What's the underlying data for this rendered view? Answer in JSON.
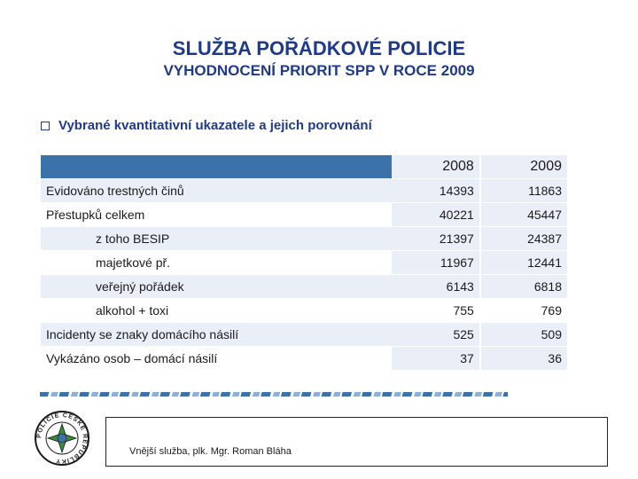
{
  "header": {
    "title": "SLUŽBA POŘÁDKOVÉ POLICIE",
    "subtitle": "VYHODNOCENÍ  PRIORIT  SPP  V  ROCE 2009"
  },
  "bullet": {
    "text": "Vybrané kvantitativní ukazatele a jejich porovnání"
  },
  "table": {
    "columns": [
      "2008",
      "2009"
    ],
    "rows": [
      {
        "label": "Evidováno trestných činů",
        "v2008": "14393",
        "v2009": "11863"
      },
      {
        "label": "Přestupků celkem",
        "v2008": "40221",
        "v2009": "45447"
      },
      {
        "label": "z toho BESIP",
        "v2008": "21397",
        "v2009": "24387"
      },
      {
        "label": "majetkové př.",
        "v2008": "11967",
        "v2009": "12441"
      },
      {
        "label": "veřejný pořádek",
        "v2008": "6143",
        "v2009": "6818"
      },
      {
        "label": "alkohol + toxi",
        "v2008": "755",
        "v2009": "769"
      },
      {
        "label": "Incidenty se znaky domácího násilí",
        "v2008": "525",
        "v2009": "509"
      },
      {
        "label": "Vykázáno osob – domácí násilí",
        "v2008": "37",
        "v2009": "36"
      }
    ]
  },
  "footer": {
    "text": "Vnější služba,  plk. Mgr. Roman Bláha"
  },
  "logo": {
    "icon": "police-badge-icon",
    "ring_text": "POLICIE ČESKÉ REPUBLIKY"
  },
  "colors": {
    "title": "#1f3a8a",
    "header_fill": "#3c72aa",
    "row_fill": "#e9eef7"
  }
}
